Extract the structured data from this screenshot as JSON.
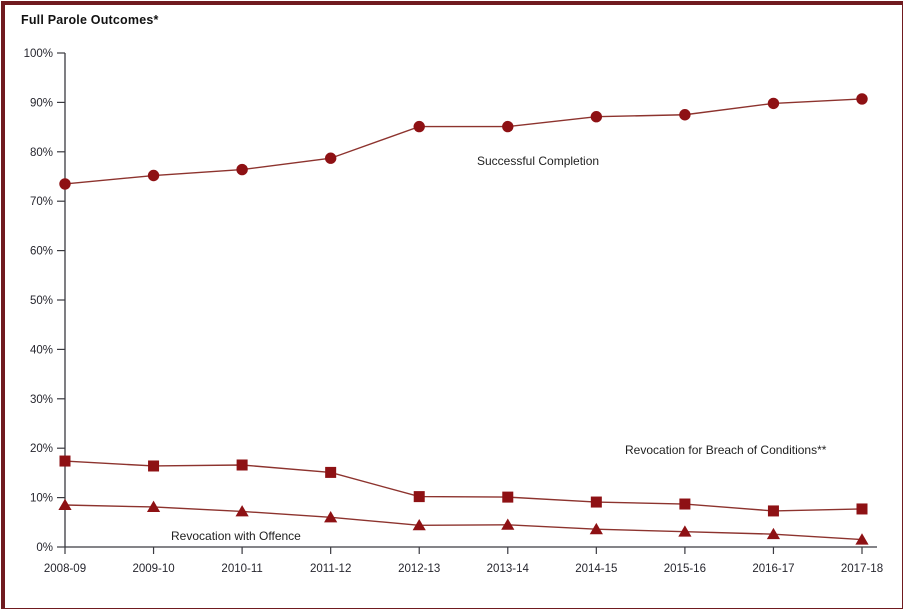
{
  "chart_data": {
    "type": "line",
    "title": "Full Parole Outcomes*",
    "xlabel": "",
    "ylabel": "",
    "ylim": [
      0,
      100
    ],
    "y_tick_step": 10,
    "y_tick_suffix": "%",
    "grid": false,
    "legend_position": "inline-annotations",
    "categories": [
      "2008-09",
      "2009-10",
      "2010-11",
      "2011-12",
      "2012-13",
      "2013-14",
      "2014-15",
      "2015-16",
      "2016-17",
      "2017-18"
    ],
    "series": [
      {
        "name": "Successful Completion",
        "marker": "circle",
        "values": [
          73.5,
          75.2,
          76.4,
          78.7,
          85.1,
          85.1,
          87.1,
          87.5,
          89.8,
          90.7
        ]
      },
      {
        "name": "Revocation for Breach of Conditions**",
        "marker": "square",
        "values": [
          17.4,
          16.4,
          16.6,
          15.1,
          10.2,
          10.1,
          9.1,
          8.7,
          7.3,
          7.7
        ]
      },
      {
        "name": "Revocation with Offence",
        "marker": "triangle",
        "values": [
          8.5,
          8.1,
          7.2,
          6.0,
          4.4,
          4.5,
          3.6,
          3.1,
          2.6,
          1.5
        ]
      }
    ],
    "colors": {
      "line": "#8d332e",
      "marker": "#8e1114",
      "axis": "#3a3a40",
      "tick_text": "#26262e",
      "frame_border": "#701a1f",
      "background": "#ffffff"
    }
  }
}
